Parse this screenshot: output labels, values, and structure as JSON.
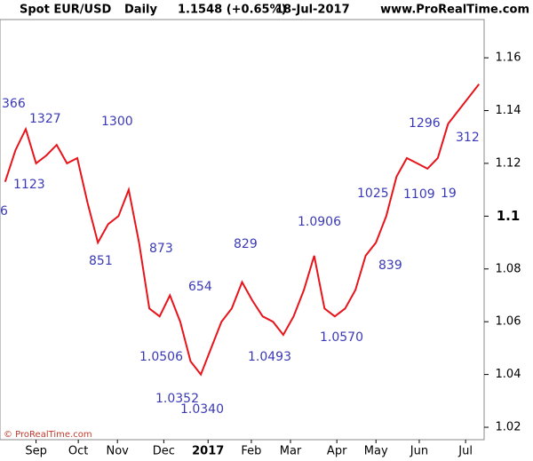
{
  "chart_data": {
    "type": "line",
    "title": "Spot EUR/USD",
    "period": "Daily",
    "last_price": "1.1548 (+0.65%)",
    "date": "18-Jul-2017",
    "source": "www.ProRealTime.com",
    "copyright": "© ProRealTime.com",
    "x": [
      0,
      1,
      2,
      3,
      4,
      5,
      6,
      7,
      8,
      9,
      10,
      11,
      12,
      13,
      14,
      15,
      16,
      17,
      18,
      19,
      20,
      21,
      22,
      23,
      24,
      25,
      26,
      27,
      28,
      29,
      30,
      31,
      32,
      33,
      34,
      35,
      36,
      37,
      38,
      39,
      40,
      41,
      42,
      43,
      44,
      45,
      46
    ],
    "series": [
      {
        "name": "EUR/USD",
        "color": "#e8141b",
        "values": [
          1.113,
          1.125,
          1.133,
          1.12,
          1.123,
          1.127,
          1.12,
          1.122,
          1.105,
          1.09,
          1.097,
          1.1,
          1.11,
          1.09,
          1.065,
          1.062,
          1.07,
          1.06,
          1.045,
          1.04,
          1.05,
          1.06,
          1.065,
          1.075,
          1.068,
          1.062,
          1.06,
          1.055,
          1.062,
          1.072,
          1.085,
          1.065,
          1.062,
          1.065,
          1.072,
          1.085,
          1.09,
          1.1,
          1.115,
          1.122,
          1.12,
          1.118,
          1.122,
          1.135,
          1.14,
          1.145,
          1.15
        ]
      }
    ],
    "xlim": [
      -0.5,
      46.5
    ],
    "xticks": [
      {
        "value": 3.0,
        "label": "Sep"
      },
      {
        "value": 7.1,
        "label": "Oct"
      },
      {
        "value": 10.9,
        "label": "Nov"
      },
      {
        "value": 15.4,
        "label": "Dec"
      },
      {
        "value": 19.7,
        "label": "2017"
      },
      {
        "value": 23.9,
        "label": "Feb"
      },
      {
        "value": 27.7,
        "label": "Mar"
      },
      {
        "value": 32.2,
        "label": "Apr"
      },
      {
        "value": 36.0,
        "label": "May"
      },
      {
        "value": 40.2,
        "label": "Jun"
      },
      {
        "value": 44.7,
        "label": "Jul"
      }
    ],
    "ylim": [
      1.0153,
      1.1745
    ],
    "yticks": [
      1.02,
      1.04,
      1.06,
      1.08,
      1.1,
      1.12,
      1.14,
      1.16
    ],
    "grid": false,
    "annotations": [
      "366",
      "1327",
      "1300",
      "1123",
      "6",
      "851",
      "873",
      "829",
      "1.0906",
      "654",
      "1025",
      "1296",
      "1109",
      "19",
      "312",
      "839",
      "1.0506",
      "1.0493",
      "1.0570",
      "1.0352",
      "1.0340"
    ]
  }
}
